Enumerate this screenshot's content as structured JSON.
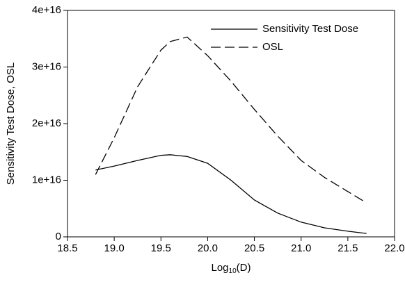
{
  "chart_data": {
    "type": "line",
    "ylabel": "Sensitivity Test Dose, OSL",
    "xlabel": {
      "base": "Log",
      "subscript": "10",
      "rest": "(D)"
    },
    "xlim": [
      18.5,
      22.0
    ],
    "xticks": [
      18.5,
      {
        "value": 19.0,
        "label": "19.0"
      },
      19.5,
      {
        "value": 20.0,
        "label": "20.0"
      },
      20.5,
      {
        "value": 21.0,
        "label": "21.0"
      },
      21.5,
      {
        "value": 22.0,
        "label": "22.0"
      }
    ],
    "ylim": [
      0,
      4e+16
    ],
    "yticks": [
      0,
      {
        "value": 1e+16,
        "label": "1e+16"
      },
      {
        "value": 2e+16,
        "label": "2e+16"
      },
      {
        "value": 3e+16,
        "label": "3e+16"
      },
      {
        "value": 4e+16,
        "label": "4e+16"
      }
    ],
    "legend": "upper right",
    "x": [
      18.8,
      19.0,
      19.25,
      19.5,
      19.6,
      19.78,
      20.0,
      20.25,
      20.5,
      20.75,
      21.0,
      21.25,
      21.5,
      21.7
    ],
    "series": [
      {
        "name": "Sensitivity Test Dose",
        "color": "#000000",
        "line_style": "solid",
        "values": [
          1.18e+16,
          1.25e+16,
          1.35e+16,
          1.44e+16,
          1.45e+16,
          1.42e+16,
          1.3e+16,
          1e+16,
          6500000000000000.0,
          4200000000000000.0,
          2600000000000000.0,
          1600000000000000.0,
          1000000000000000.0,
          600000000000000.0
        ]
      },
      {
        "name": "OSL",
        "color": "#000000",
        "line_style": "dashed",
        "values": [
          1.1e+16,
          1.75e+16,
          2.65e+16,
          3.3e+16,
          3.45e+16,
          3.53e+16,
          3.2e+16,
          2.75e+16,
          2.25e+16,
          1.78e+16,
          1.35e+16,
          1.05e+16,
          8000000000000000.0,
          6000000000000000.0
        ]
      }
    ]
  }
}
